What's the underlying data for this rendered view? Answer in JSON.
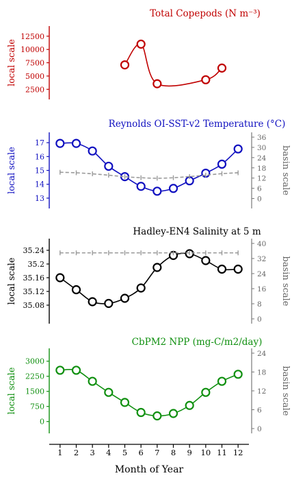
{
  "chart_data": [
    {
      "type": "line",
      "title": "Total Copepods (N m⁻³)",
      "ylabel": "local scale",
      "color": "#c00000",
      "ylim": [
        1500,
        13500
      ],
      "yticks": [
        2500,
        5000,
        7500,
        10000,
        12500
      ],
      "series": [
        {
          "x": [
            5,
            6,
            7,
            10,
            11
          ],
          "values": [
            7100,
            11000,
            3550,
            4300,
            6500
          ]
        }
      ]
    },
    {
      "type": "line",
      "title": "Reynolds OI-SST-v2 Temperature (°C)",
      "ylabel": "local scale",
      "y2label": "basin scale",
      "color": "#1010c0",
      "ylim": [
        12.6,
        17.4
      ],
      "yticks": [
        13,
        14,
        15,
        16,
        17
      ],
      "y2lim": [
        -3,
        36
      ],
      "y2ticks": [
        0,
        6,
        12,
        18,
        24,
        30,
        36
      ],
      "series": [
        {
          "x": [
            1,
            2,
            3,
            4,
            5,
            6,
            7,
            8,
            9,
            10,
            11,
            12
          ],
          "values": [
            16.95,
            16.95,
            16.4,
            15.3,
            14.55,
            13.85,
            13.5,
            13.7,
            14.25,
            14.8,
            15.45,
            16.55
          ]
        },
        {
          "axis": "basin",
          "style": "dashed",
          "x": [
            1,
            2,
            3,
            4,
            5,
            6,
            7,
            8,
            9,
            10,
            11,
            12
          ],
          "values": [
            15.4,
            15.1,
            14.5,
            13.7,
            12.8,
            12.2,
            11.9,
            12.2,
            12.9,
            13.7,
            14.6,
            15.1
          ]
        }
      ]
    },
    {
      "type": "line",
      "title": "Hadley-EN4 Salinity at 5 m",
      "ylabel": "local scale",
      "y2label": "basin scale",
      "color": "#000000",
      "ylim": [
        35.04,
        35.26
      ],
      "yticks": [
        35.08,
        35.12,
        35.16,
        35.2,
        35.24
      ],
      "y2lim": [
        0,
        40
      ],
      "y2ticks": [
        0,
        8,
        16,
        24,
        32,
        40
      ],
      "series": [
        {
          "x": [
            1,
            2,
            3,
            4,
            5,
            6,
            7,
            8,
            9,
            10,
            11,
            12
          ],
          "values": [
            35.16,
            35.125,
            35.09,
            35.085,
            35.1,
            35.13,
            35.19,
            35.225,
            35.23,
            35.21,
            35.185,
            35.185
          ]
        },
        {
          "axis": "basin",
          "style": "dashed",
          "x": [
            1,
            2,
            3,
            4,
            5,
            6,
            7,
            8,
            9,
            10,
            11,
            12
          ],
          "values": [
            35.0,
            35.0,
            35.0,
            35.0,
            35.0,
            35.0,
            35.0,
            35.0,
            35.0,
            35.0,
            35.0,
            35.0
          ]
        }
      ]
    },
    {
      "type": "line",
      "title": "CbPM2 NPP (mg-C/m2/day)",
      "ylabel": "local scale",
      "y2label": "basin scale",
      "color": "#109010",
      "ylim": [
        -350,
        3400
      ],
      "yticks": [
        0,
        750,
        1500,
        2250,
        3000
      ],
      "y2lim": [
        0,
        24
      ],
      "y2ticks": [
        0,
        6,
        12,
        18,
        24
      ],
      "series": [
        {
          "x": [
            1,
            2,
            3,
            4,
            5,
            6,
            7,
            8,
            9,
            10,
            11,
            12
          ],
          "values": [
            2550,
            2550,
            2000,
            1450,
            950,
            450,
            280,
            400,
            800,
            1450,
            2000,
            2350
          ]
        }
      ]
    }
  ],
  "xaxis": {
    "label": "Month of Year",
    "ticks": [
      1,
      2,
      3,
      4,
      5,
      6,
      7,
      8,
      9,
      10,
      11,
      12
    ],
    "xlim": [
      0.5,
      12.5
    ]
  }
}
